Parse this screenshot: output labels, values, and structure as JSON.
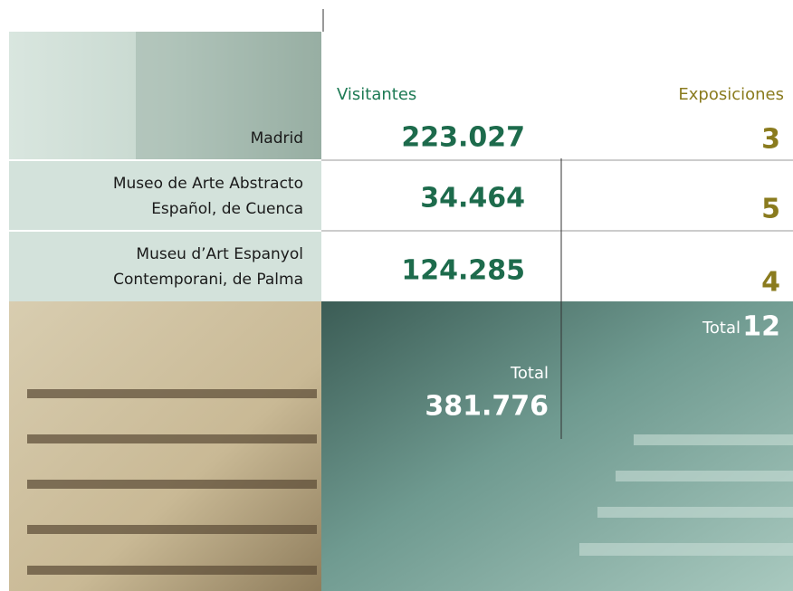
{
  "headers": {
    "visitors": "Visitantes",
    "exhibitions": "Exposiciones"
  },
  "rows": [
    {
      "name": [
        "Madrid"
      ],
      "visitors": "223.027",
      "exhibitions": "3"
    },
    {
      "name": [
        "Museo de Arte Abstracto",
        "Español, de Cuenca"
      ],
      "visitors": "34.464",
      "exhibitions": "5"
    },
    {
      "name": [
        "Museu d’Art Espanyol",
        "Contemporani, de Palma"
      ],
      "visitors": "124.285",
      "exhibitions": "4"
    }
  ],
  "totals": {
    "visitors_label": "Total",
    "visitors": "381.776",
    "exhibitions_label": "Total",
    "exhibitions": "12"
  }
}
